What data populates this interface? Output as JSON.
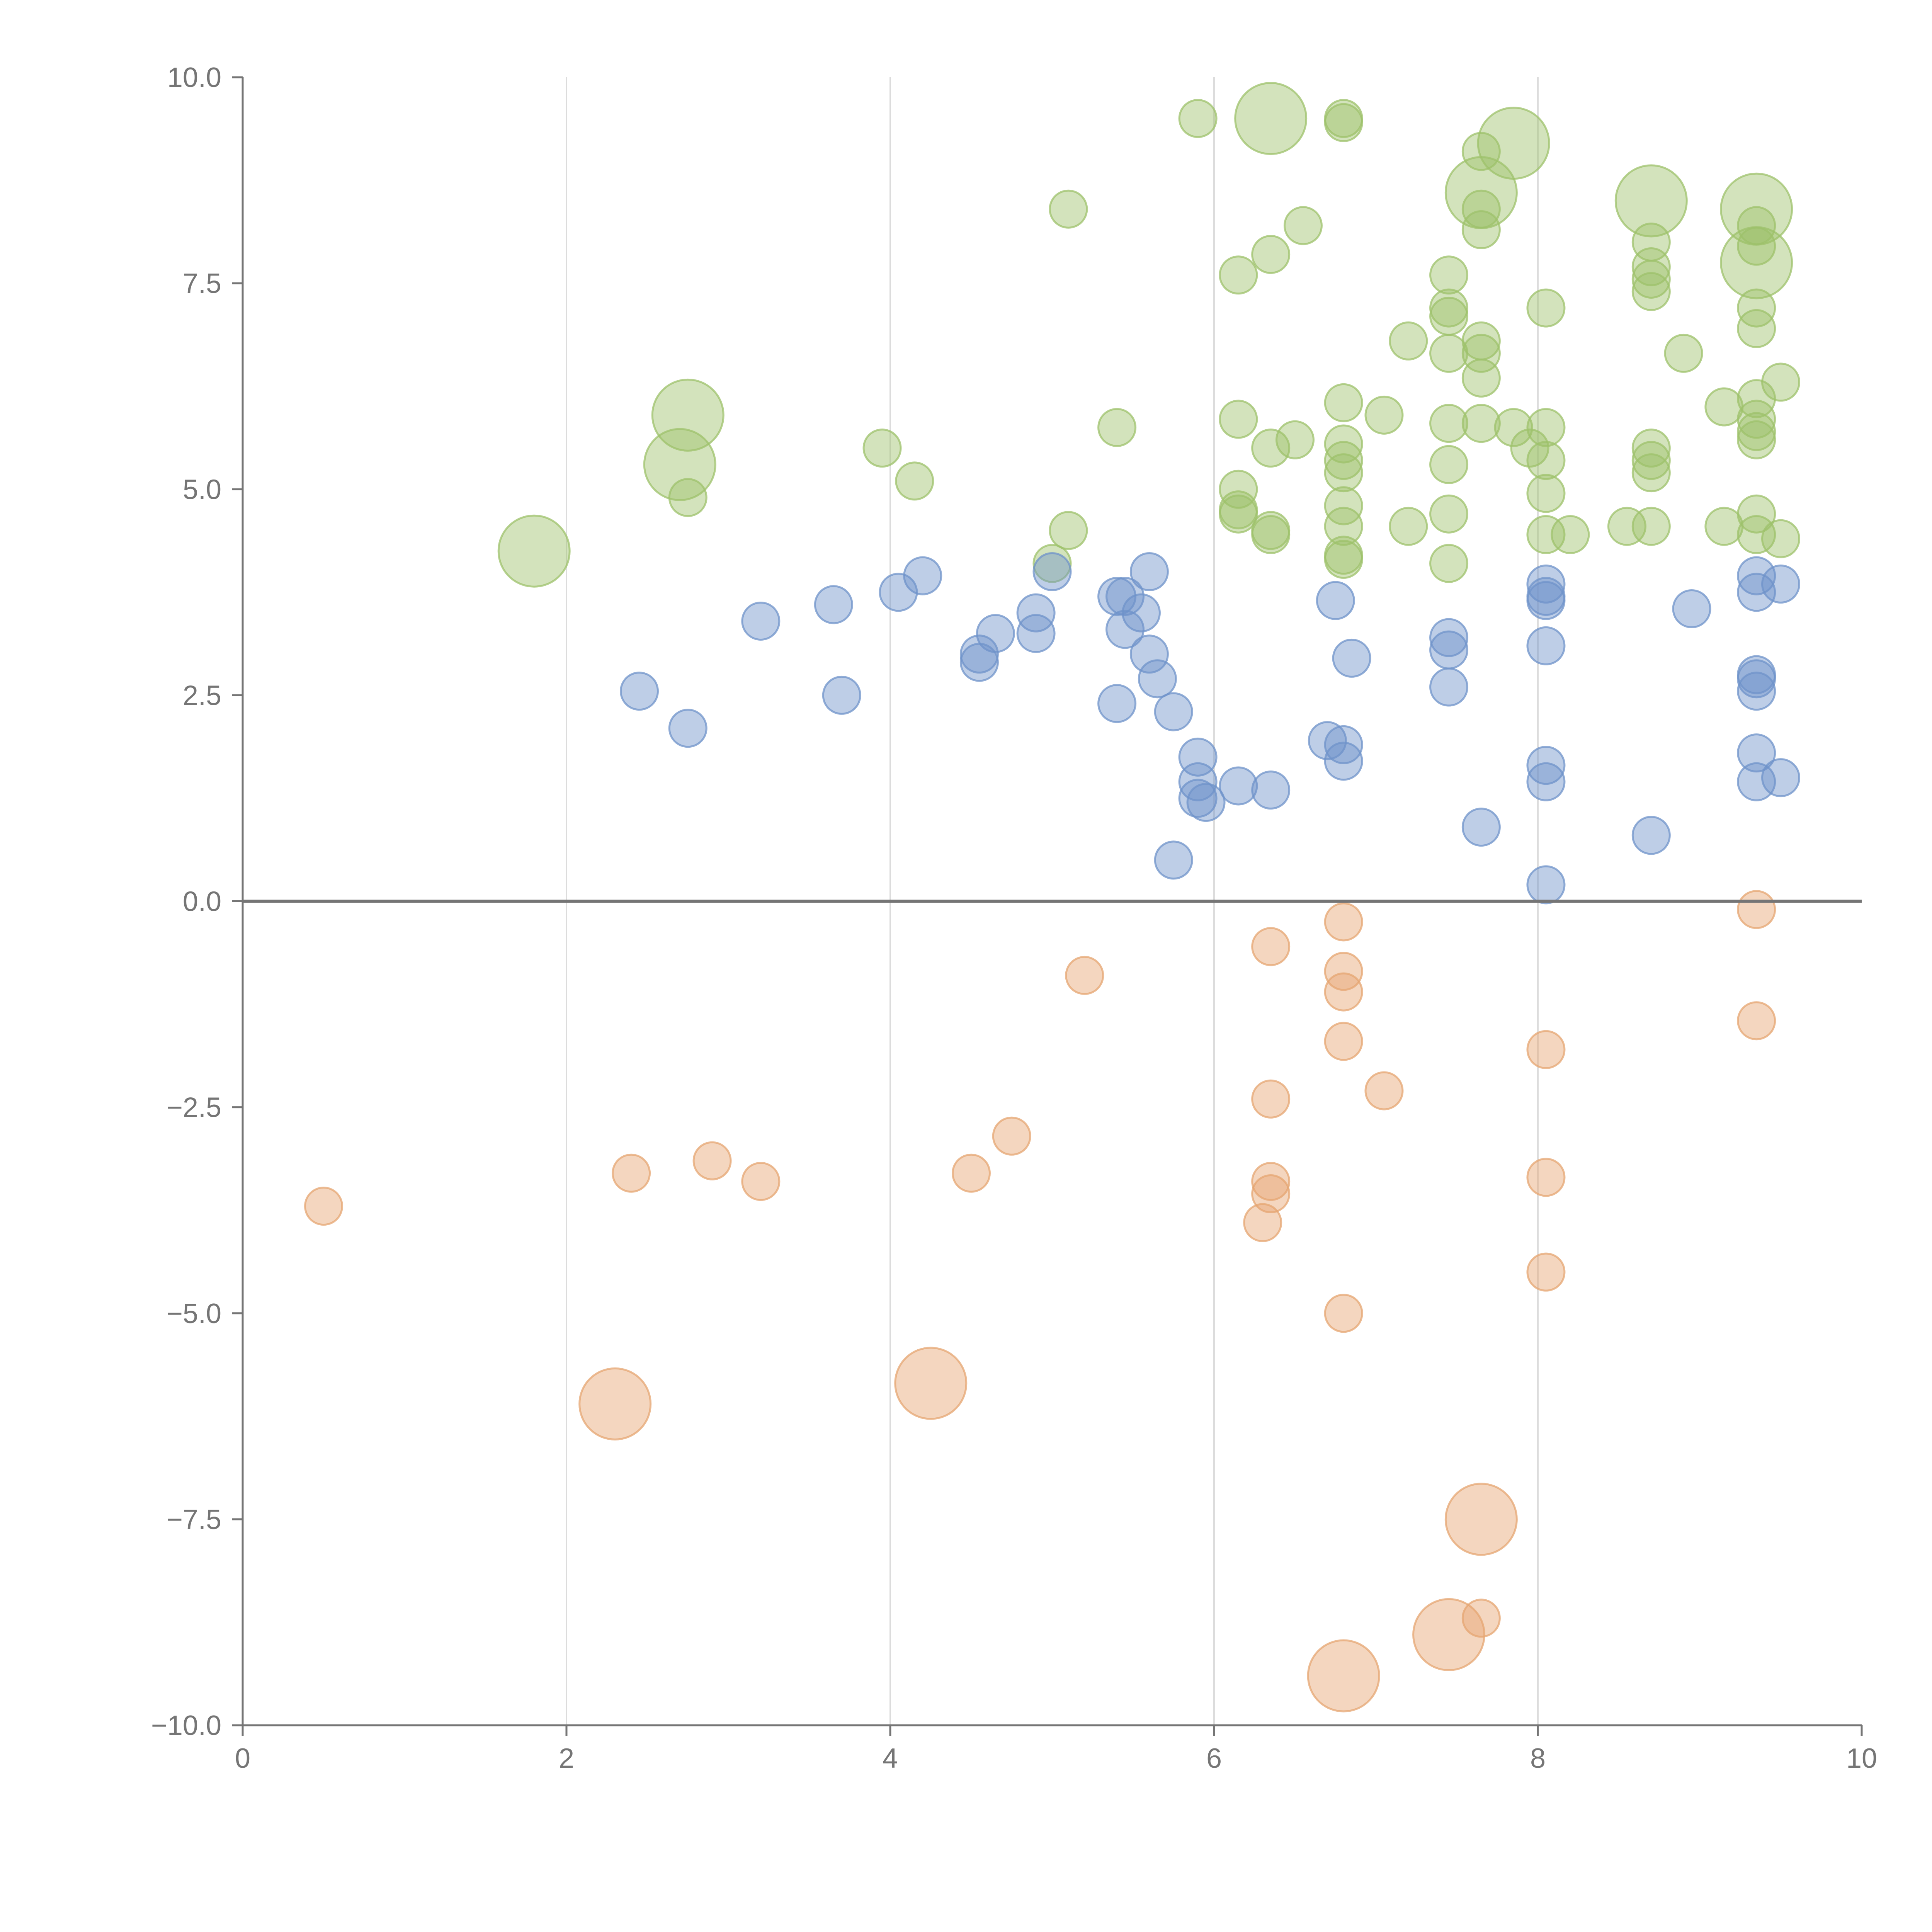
{
  "chart_data": {
    "type": "scatter",
    "title": "",
    "xlabel": "",
    "ylabel": "",
    "xlim": [
      0,
      10
    ],
    "ylim": [
      -10,
      10
    ],
    "grid": "vertical",
    "x_ticks": [
      "0",
      "2",
      "4",
      "6",
      "8",
      "10"
    ],
    "y_ticks": [
      "10.0",
      "7.5",
      "5.0",
      "2.5",
      "0.0",
      "−2.5",
      "−5.0",
      "−7.5",
      "−10.0"
    ],
    "colors": {
      "green": "#9dc26b",
      "blue": "#6f93c9",
      "orange": "#e6a572"
    },
    "series": [
      {
        "name": "green",
        "color": "green",
        "points": [
          {
            "x": 5.9,
            "y": 9.5
          },
          {
            "x": 6.35,
            "y": 9.5,
            "size": 3
          },
          {
            "x": 6.8,
            "y": 9.5
          },
          {
            "x": 6.8,
            "y": 9.45
          },
          {
            "x": 7.85,
            "y": 9.2,
            "size": 3
          },
          {
            "x": 7.65,
            "y": 9.1
          },
          {
            "x": 7.65,
            "y": 8.6,
            "size": 3
          },
          {
            "x": 7.65,
            "y": 8.4
          },
          {
            "x": 7.65,
            "y": 8.15
          },
          {
            "x": 8.7,
            "y": 8.5,
            "size": 3
          },
          {
            "x": 9.35,
            "y": 8.4,
            "size": 3
          },
          {
            "x": 9.35,
            "y": 8.2
          },
          {
            "x": 9.35,
            "y": 7.95
          },
          {
            "x": 9.35,
            "y": 7.75,
            "size": 3
          },
          {
            "x": 8.7,
            "y": 8.0
          },
          {
            "x": 8.7,
            "y": 7.7
          },
          {
            "x": 8.7,
            "y": 7.55
          },
          {
            "x": 8.7,
            "y": 7.4
          },
          {
            "x": 5.1,
            "y": 8.4
          },
          {
            "x": 6.55,
            "y": 8.2
          },
          {
            "x": 6.35,
            "y": 7.85
          },
          {
            "x": 6.15,
            "y": 7.6
          },
          {
            "x": 7.45,
            "y": 7.6
          },
          {
            "x": 7.45,
            "y": 7.2
          },
          {
            "x": 7.45,
            "y": 7.1
          },
          {
            "x": 8.05,
            "y": 7.2
          },
          {
            "x": 9.35,
            "y": 7.2
          },
          {
            "x": 9.35,
            "y": 6.95
          },
          {
            "x": 7.2,
            "y": 6.8
          },
          {
            "x": 7.45,
            "y": 6.65
          },
          {
            "x": 7.65,
            "y": 6.8
          },
          {
            "x": 7.65,
            "y": 6.65
          },
          {
            "x": 7.65,
            "y": 6.35
          },
          {
            "x": 8.9,
            "y": 6.65
          },
          {
            "x": 9.5,
            "y": 6.3
          },
          {
            "x": 9.35,
            "y": 6.1
          },
          {
            "x": 9.15,
            "y": 6.0
          },
          {
            "x": 9.35,
            "y": 5.85
          },
          {
            "x": 9.35,
            "y": 5.7
          },
          {
            "x": 9.35,
            "y": 5.6
          },
          {
            "x": 2.75,
            "y": 5.9,
            "size": 3
          },
          {
            "x": 6.15,
            "y": 5.85
          },
          {
            "x": 6.8,
            "y": 6.05
          },
          {
            "x": 7.05,
            "y": 5.9
          },
          {
            "x": 7.45,
            "y": 5.8
          },
          {
            "x": 7.65,
            "y": 5.8
          },
          {
            "x": 7.85,
            "y": 5.75
          },
          {
            "x": 8.05,
            "y": 5.75
          },
          {
            "x": 5.4,
            "y": 5.75
          },
          {
            "x": 6.35,
            "y": 5.5
          },
          {
            "x": 6.5,
            "y": 5.6
          },
          {
            "x": 6.8,
            "y": 5.55
          },
          {
            "x": 6.8,
            "y": 5.35
          },
          {
            "x": 6.8,
            "y": 5.2
          },
          {
            "x": 7.45,
            "y": 5.3
          },
          {
            "x": 7.95,
            "y": 5.5
          },
          {
            "x": 8.05,
            "y": 5.35
          },
          {
            "x": 8.7,
            "y": 5.5
          },
          {
            "x": 8.7,
            "y": 5.35
          },
          {
            "x": 8.7,
            "y": 5.2
          },
          {
            "x": 3.95,
            "y": 5.5
          },
          {
            "x": 4.15,
            "y": 5.1
          },
          {
            "x": 2.7,
            "y": 5.3,
            "size": 3
          },
          {
            "x": 2.75,
            "y": 4.9
          },
          {
            "x": 6.15,
            "y": 5.0
          },
          {
            "x": 6.15,
            "y": 4.75
          },
          {
            "x": 6.15,
            "y": 4.7
          },
          {
            "x": 6.8,
            "y": 4.8
          },
          {
            "x": 6.8,
            "y": 4.55
          },
          {
            "x": 7.2,
            "y": 4.55
          },
          {
            "x": 7.45,
            "y": 4.7
          },
          {
            "x": 8.05,
            "y": 4.95
          },
          {
            "x": 8.05,
            "y": 4.45
          },
          {
            "x": 8.2,
            "y": 4.45
          },
          {
            "x": 8.55,
            "y": 4.55
          },
          {
            "x": 8.7,
            "y": 4.55
          },
          {
            "x": 9.15,
            "y": 4.55
          },
          {
            "x": 9.35,
            "y": 4.7
          },
          {
            "x": 9.35,
            "y": 4.45
          },
          {
            "x": 9.5,
            "y": 4.4
          },
          {
            "x": 5.1,
            "y": 4.5
          },
          {
            "x": 5.0,
            "y": 4.1
          },
          {
            "x": 6.35,
            "y": 4.5
          },
          {
            "x": 6.35,
            "y": 4.45
          },
          {
            "x": 6.8,
            "y": 4.2
          },
          {
            "x": 6.8,
            "y": 4.15
          },
          {
            "x": 7.45,
            "y": 4.1
          },
          {
            "x": 1.8,
            "y": 4.25,
            "size": 3
          }
        ]
      },
      {
        "name": "blue",
        "color": "blue",
        "points": [
          {
            "x": 4.2,
            "y": 3.95
          },
          {
            "x": 5.6,
            "y": 4.0
          },
          {
            "x": 5.0,
            "y": 4.0
          },
          {
            "x": 4.05,
            "y": 3.75
          },
          {
            "x": 3.65,
            "y": 3.6
          },
          {
            "x": 3.2,
            "y": 3.4
          },
          {
            "x": 5.4,
            "y": 3.7
          },
          {
            "x": 5.45,
            "y": 3.7
          },
          {
            "x": 5.55,
            "y": 3.5
          },
          {
            "x": 4.9,
            "y": 3.5
          },
          {
            "x": 4.65,
            "y": 3.25
          },
          {
            "x": 4.9,
            "y": 3.25
          },
          {
            "x": 5.45,
            "y": 3.3
          },
          {
            "x": 4.55,
            "y": 3.0
          },
          {
            "x": 4.55,
            "y": 2.9
          },
          {
            "x": 5.6,
            "y": 3.0
          },
          {
            "x": 5.65,
            "y": 2.7
          },
          {
            "x": 5.4,
            "y": 2.4
          },
          {
            "x": 5.75,
            "y": 2.3
          },
          {
            "x": 3.7,
            "y": 2.5
          },
          {
            "x": 2.45,
            "y": 2.55
          },
          {
            "x": 2.75,
            "y": 2.1
          },
          {
            "x": 6.75,
            "y": 3.65
          },
          {
            "x": 6.85,
            "y": 2.95
          },
          {
            "x": 7.45,
            "y": 3.2
          },
          {
            "x": 7.45,
            "y": 3.05
          },
          {
            "x": 7.45,
            "y": 2.6
          },
          {
            "x": 8.05,
            "y": 3.85
          },
          {
            "x": 8.05,
            "y": 3.7
          },
          {
            "x": 8.05,
            "y": 3.65
          },
          {
            "x": 8.05,
            "y": 3.1
          },
          {
            "x": 8.95,
            "y": 3.55
          },
          {
            "x": 9.35,
            "y": 3.95
          },
          {
            "x": 9.35,
            "y": 3.75
          },
          {
            "x": 9.5,
            "y": 3.85
          },
          {
            "x": 9.35,
            "y": 2.75
          },
          {
            "x": 9.35,
            "y": 2.7
          },
          {
            "x": 9.35,
            "y": 2.55
          },
          {
            "x": 9.35,
            "y": 1.8
          },
          {
            "x": 9.35,
            "y": 1.45
          },
          {
            "x": 9.5,
            "y": 1.5
          },
          {
            "x": 5.9,
            "y": 1.75
          },
          {
            "x": 5.9,
            "y": 1.45
          },
          {
            "x": 5.9,
            "y": 1.25
          },
          {
            "x": 5.95,
            "y": 1.2
          },
          {
            "x": 6.15,
            "y": 1.4
          },
          {
            "x": 6.35,
            "y": 1.35
          },
          {
            "x": 6.7,
            "y": 1.95
          },
          {
            "x": 6.8,
            "y": 1.9
          },
          {
            "x": 6.8,
            "y": 1.7
          },
          {
            "x": 5.75,
            "y": 0.5
          },
          {
            "x": 7.65,
            "y": 0.9
          },
          {
            "x": 8.05,
            "y": 1.65
          },
          {
            "x": 8.05,
            "y": 1.45
          },
          {
            "x": 8.7,
            "y": 0.8
          },
          {
            "x": 8.05,
            "y": 0.2
          }
        ]
      },
      {
        "name": "orange",
        "color": "orange",
        "points": [
          {
            "x": 6.8,
            "y": -0.25
          },
          {
            "x": 9.35,
            "y": -0.1
          },
          {
            "x": 6.35,
            "y": -0.55
          },
          {
            "x": 5.2,
            "y": -0.9
          },
          {
            "x": 6.8,
            "y": -0.85
          },
          {
            "x": 6.8,
            "y": -1.1
          },
          {
            "x": 6.8,
            "y": -1.7
          },
          {
            "x": 8.05,
            "y": -1.8
          },
          {
            "x": 9.35,
            "y": -1.45
          },
          {
            "x": 7.05,
            "y": -2.3
          },
          {
            "x": 6.35,
            "y": -2.4
          },
          {
            "x": 4.75,
            "y": -2.85
          },
          {
            "x": 4.5,
            "y": -3.3
          },
          {
            "x": 2.9,
            "y": -3.15
          },
          {
            "x": 2.4,
            "y": -3.3
          },
          {
            "x": 3.2,
            "y": -3.4
          },
          {
            "x": 0.5,
            "y": -3.7
          },
          {
            "x": 6.35,
            "y": -3.4
          },
          {
            "x": 6.35,
            "y": -3.55
          },
          {
            "x": 6.3,
            "y": -3.9
          },
          {
            "x": 8.05,
            "y": -3.35
          },
          {
            "x": 8.05,
            "y": -4.5
          },
          {
            "x": 6.8,
            "y": -5.0
          },
          {
            "x": 2.3,
            "y": -6.1,
            "size": 3
          },
          {
            "x": 4.25,
            "y": -5.85,
            "size": 3
          },
          {
            "x": 7.65,
            "y": -7.5,
            "size": 3
          },
          {
            "x": 7.65,
            "y": -8.7
          },
          {
            "x": 7.45,
            "y": -8.9,
            "size": 3
          },
          {
            "x": 6.8,
            "y": -9.4,
            "size": 3
          }
        ]
      }
    ],
    "annotations": []
  }
}
